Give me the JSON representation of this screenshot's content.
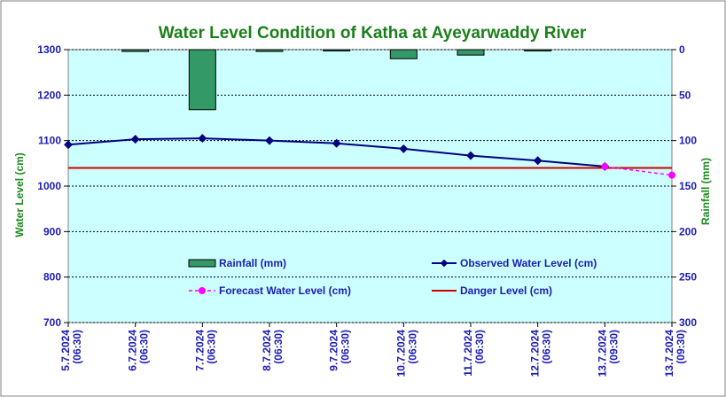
{
  "chart_data": {
    "type": "bar+line",
    "title": "Water Level Condition of Katha at Ayeyarwaddy River",
    "y_left_label": "Water Level (cm)",
    "y_right_label": "Rainfall (mm)",
    "y_left_range": [
      700,
      1300
    ],
    "y_left_ticks": [
      1300,
      1200,
      1100,
      1000,
      900,
      800,
      700
    ],
    "y_right_range": [
      0,
      300
    ],
    "y_right_ticks": [
      0,
      50,
      100,
      150,
      200,
      250,
      300
    ],
    "y_right_inverted": true,
    "grid": true,
    "categories": [
      [
        "5.7.2024",
        "(06:30)"
      ],
      [
        "6.7.2024",
        "(06:30)"
      ],
      [
        "7.7.2024",
        "(06:30)"
      ],
      [
        "8.7.2024",
        "(06:30)"
      ],
      [
        "9.7.2024",
        "(06:30)"
      ],
      [
        "10.7.2024",
        "(06:30)"
      ],
      [
        "11.7.2024",
        "(06:30)"
      ],
      [
        "12.7.2024",
        "(06:30)"
      ],
      [
        "13.7.2024",
        "(09:30)"
      ],
      [
        "13.7.2024",
        "(09:30)"
      ]
    ],
    "series": [
      {
        "name": "Rainfall (mm)",
        "kind": "bar",
        "axis": "right",
        "color": "#339966",
        "values": [
          null,
          2,
          66,
          2,
          0,
          10,
          6,
          1,
          null,
          null
        ]
      },
      {
        "name": "Observed Water Level (cm)",
        "kind": "line",
        "axis": "left",
        "color": "#000080",
        "values": [
          1091,
          1103,
          1105,
          1100,
          1094,
          1082,
          1067,
          1056,
          1043,
          null
        ]
      },
      {
        "name": "Forecast Water Level (cm)",
        "kind": "dashed-line",
        "axis": "left",
        "color": "#ff00ff",
        "values": [
          null,
          null,
          null,
          null,
          null,
          null,
          null,
          null,
          1043,
          1024
        ]
      },
      {
        "name": "Danger Level (cm)",
        "kind": "constant-line",
        "axis": "left",
        "color": "#cc0000",
        "value": 1040
      }
    ],
    "legend_position": "inside-bottom"
  }
}
